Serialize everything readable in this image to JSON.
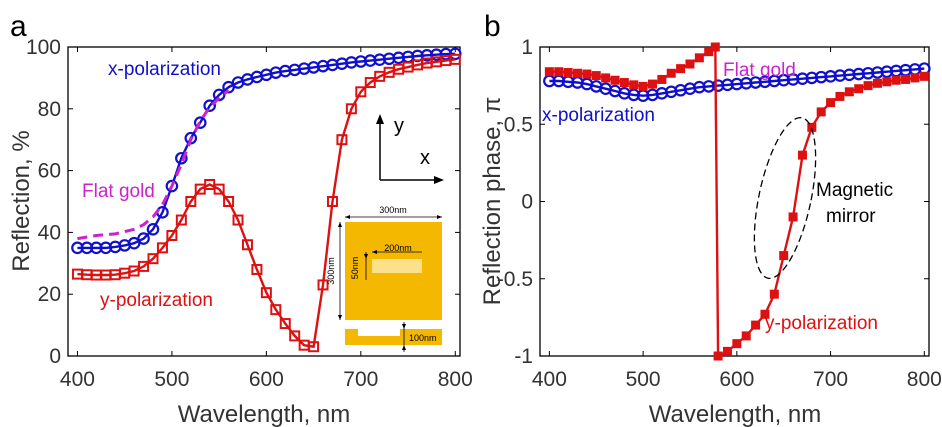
{
  "chart_data": [
    {
      "panel_label": "a",
      "type": "line",
      "xlabel": "Wavelength, nm",
      "ylabel": "Reflection, %",
      "xlim": [
        390,
        805
      ],
      "ylim": [
        0,
        100
      ],
      "xticks": [
        400,
        500,
        600,
        700,
        800
      ],
      "yticks": [
        0,
        20,
        40,
        60,
        80,
        100
      ],
      "series": [
        {
          "label": "x-polarization",
          "color": "#1010cc",
          "marker": "circle",
          "x": [
            400,
            410,
            420,
            430,
            440,
            450,
            460,
            470,
            480,
            490,
            500,
            510,
            520,
            530,
            540,
            550,
            560,
            570,
            580,
            590,
            600,
            610,
            620,
            630,
            640,
            650,
            660,
            670,
            680,
            690,
            700,
            710,
            720,
            730,
            740,
            750,
            760,
            770,
            780,
            790,
            800
          ],
          "y": [
            35,
            35,
            35,
            35,
            35.3,
            35.8,
            36.5,
            38,
            41,
            46.5,
            55,
            64,
            70.5,
            75.5,
            81,
            84.5,
            87,
            88.5,
            89.5,
            90.3,
            91,
            91.7,
            92.2,
            92.6,
            93,
            93.4,
            93.8,
            94.2,
            94.6,
            95,
            95.3,
            95.6,
            95.9,
            96.2,
            96.5,
            96.8,
            97.1,
            97.3,
            97.5,
            97.7,
            97.8
          ]
        },
        {
          "label": "y-polarization",
          "color": "#dd1111",
          "marker": "square",
          "x": [
            400,
            410,
            420,
            430,
            440,
            450,
            460,
            470,
            480,
            490,
            500,
            510,
            520,
            530,
            540,
            550,
            560,
            570,
            580,
            590,
            600,
            610,
            620,
            630,
            640,
            650,
            660,
            670,
            680,
            690,
            700,
            710,
            720,
            730,
            740,
            750,
            760,
            770,
            780,
            790,
            800
          ],
          "y": [
            26.5,
            26.3,
            26.2,
            26.2,
            26.3,
            26.8,
            27.5,
            29,
            31.5,
            35,
            39,
            44,
            50,
            54,
            55.5,
            54,
            50,
            44,
            36,
            28,
            20.5,
            15,
            10.5,
            6.5,
            3.5,
            3,
            23,
            50,
            70,
            80,
            85.5,
            88.5,
            90.5,
            91.8,
            92.8,
            93.5,
            94.2,
            94.8,
            95.2,
            95.6,
            96
          ]
        },
        {
          "label": "Flat gold",
          "color": "#cc22cc",
          "style": "dashed",
          "x": [
            400,
            420,
            440,
            460,
            470,
            480,
            490,
            500,
            510,
            520,
            530,
            540,
            550,
            560
          ],
          "y": [
            38,
            39,
            39.5,
            41,
            42.5,
            45,
            49,
            55,
            62,
            70,
            76,
            80.5,
            83.5,
            86
          ]
        }
      ],
      "annotations": [
        "x-polarization",
        "Flat gold",
        "y-polarization"
      ],
      "inset": {
        "axis_y": "y",
        "axis_x": "x",
        "dim_width": "300nm",
        "dim_height": "300nm",
        "dim_slot_len": "200nm",
        "dim_slot_w": "50nm",
        "dim_thickness": "100nm",
        "gold_color": "#f5b800",
        "slot_color": "#fde08a"
      }
    },
    {
      "panel_label": "b",
      "type": "line",
      "xlabel": "Wavelength, nm",
      "ylabel": "Reflection phase, π",
      "xlim": [
        390,
        805
      ],
      "ylim": [
        -1,
        1
      ],
      "xticks": [
        400,
        500,
        600,
        700,
        800
      ],
      "yticks": [
        -1,
        -0.5,
        0,
        0.5,
        1
      ],
      "ytick_labels": [
        "-1",
        "-0.5",
        "0",
        "0.5",
        "1"
      ],
      "series": [
        {
          "label": "x-polarization",
          "color": "#1010cc",
          "marker": "circle",
          "x": [
            400,
            410,
            420,
            430,
            440,
            450,
            460,
            470,
            480,
            490,
            500,
            510,
            520,
            530,
            540,
            550,
            560,
            570,
            580,
            590,
            600,
            610,
            620,
            630,
            640,
            650,
            660,
            670,
            680,
            690,
            700,
            710,
            720,
            730,
            740,
            750,
            760,
            770,
            780,
            790,
            800
          ],
          "y": [
            0.78,
            0.78,
            0.775,
            0.77,
            0.76,
            0.745,
            0.73,
            0.715,
            0.7,
            0.69,
            0.685,
            0.69,
            0.7,
            0.71,
            0.72,
            0.73,
            0.74,
            0.745,
            0.75,
            0.755,
            0.76,
            0.765,
            0.77,
            0.775,
            0.78,
            0.785,
            0.79,
            0.795,
            0.8,
            0.805,
            0.81,
            0.815,
            0.82,
            0.825,
            0.83,
            0.835,
            0.84,
            0.845,
            0.85,
            0.855,
            0.86
          ]
        },
        {
          "label": "y-polarization",
          "color": "#dd1111",
          "marker": "square",
          "x": [
            400,
            410,
            420,
            430,
            440,
            450,
            460,
            470,
            480,
            490,
            500,
            510,
            520,
            530,
            540,
            550,
            560,
            570,
            577,
            580,
            590,
            600,
            610,
            620,
            630,
            640,
            650,
            660,
            670,
            680,
            690,
            700,
            710,
            720,
            730,
            740,
            750,
            760,
            770,
            780,
            790,
            800
          ],
          "y": [
            0.84,
            0.84,
            0.835,
            0.83,
            0.825,
            0.815,
            0.8,
            0.785,
            0.77,
            0.755,
            0.745,
            0.76,
            0.79,
            0.83,
            0.86,
            0.89,
            0.93,
            0.97,
            1.0,
            -1.0,
            -0.97,
            -0.92,
            -0.87,
            -0.8,
            -0.73,
            -0.6,
            -0.35,
            -0.1,
            0.3,
            0.48,
            0.58,
            0.64,
            0.68,
            0.71,
            0.73,
            0.75,
            0.765,
            0.775,
            0.785,
            0.79,
            0.8,
            0.81
          ]
        }
      ],
      "annotations": [
        "Flat gold",
        "x-polarization",
        "Magnetic",
        "mirror",
        "y-polarization"
      ]
    }
  ]
}
